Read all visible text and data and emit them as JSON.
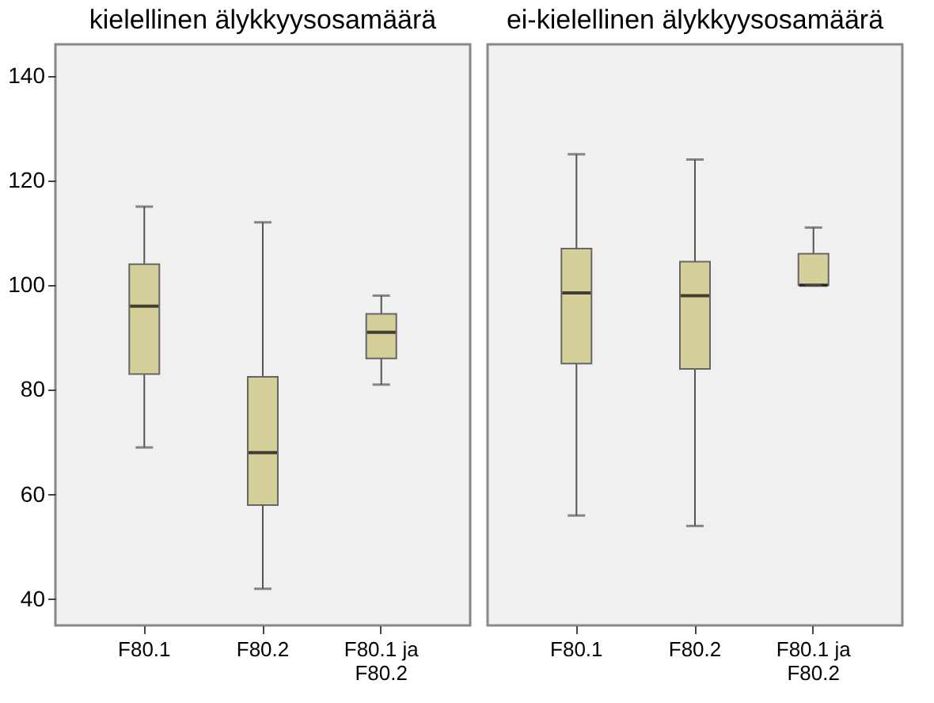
{
  "chart_data": [
    {
      "type": "box",
      "title": "kielellinen älykkyysosamäärä",
      "categories": [
        "F80.1",
        "F80.2",
        "F80.1 ja F80.2"
      ],
      "ylim": [
        35,
        146
      ],
      "yticks": [
        40,
        60,
        80,
        100,
        120,
        140
      ],
      "series": [
        {
          "color": "#d5d09a",
          "boxes": [
            {
              "low": 69,
              "q1": 83,
              "median": 96,
              "q3": 104,
              "high": 115
            },
            {
              "low": 42,
              "q1": 58,
              "median": 68,
              "q3": 82.5,
              "high": 112
            },
            {
              "low": 81,
              "q1": 86,
              "median": 91,
              "q3": 94.5,
              "high": 98
            }
          ]
        }
      ]
    },
    {
      "type": "box",
      "title": "ei-kielellinen älykkyysosamäärä",
      "categories": [
        "F80.1",
        "F80.2",
        "F80.1 ja F80.2"
      ],
      "ylim": [
        35,
        146
      ],
      "yticks": [
        40,
        60,
        80,
        100,
        120,
        140
      ],
      "tick_labels": "x",
      "series": [
        {
          "color": "#d5d09a",
          "boxes": [
            {
              "low": 56,
              "q1": 85,
              "median": 98.5,
              "q3": 107,
              "high": 125
            },
            {
              "low": 54,
              "q1": 84,
              "median": 98,
              "q3": 104.5,
              "high": 124
            },
            {
              "low": 100,
              "q1": 100,
              "median": 100,
              "q3": 106,
              "high": 111
            }
          ]
        }
      ]
    }
  ]
}
